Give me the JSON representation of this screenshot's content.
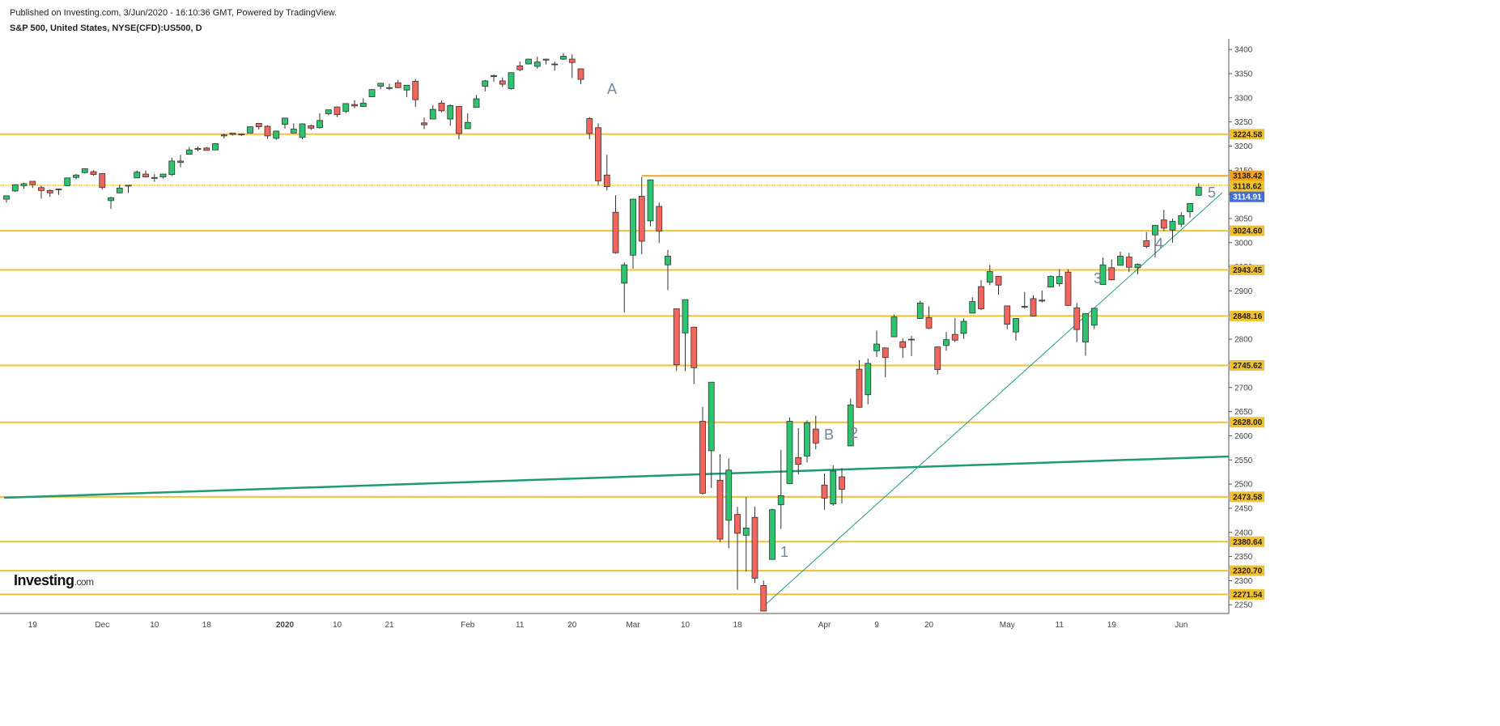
{
  "header": {
    "published": "Published on Investing.com, 3/Jun/2020 - 16:10:36 GMT, Powered by TradingView.",
    "symbol": "S&P 500, United States, NYSE(CFD):US500, D"
  },
  "logo": {
    "name": "Investing",
    "suffix": ".com"
  },
  "chart_data": {
    "type": "candlestick",
    "up_color": "#2cc46f",
    "down_color": "#f2655c",
    "categories": [
      null,
      null,
      null,
      "19",
      null,
      null,
      null,
      null,
      null,
      null,
      null,
      "Dec",
      null,
      null,
      null,
      null,
      null,
      "10",
      null,
      null,
      null,
      null,
      null,
      "18",
      null,
      null,
      null,
      null,
      null,
      null,
      null,
      null,
      "2020",
      null,
      null,
      null,
      null,
      null,
      "10",
      null,
      null,
      null,
      null,
      null,
      "21",
      null,
      null,
      null,
      null,
      null,
      null,
      null,
      null,
      "Feb",
      null,
      null,
      null,
      null,
      null,
      "11",
      null,
      null,
      null,
      null,
      null,
      "20",
      null,
      null,
      null,
      null,
      null,
      null,
      "Mar",
      null,
      null,
      null,
      null,
      null,
      "10",
      null,
      null,
      null,
      null,
      null,
      "18",
      null,
      null,
      null,
      null,
      null,
      null,
      null,
      null,
      null,
      "Apr",
      null,
      null,
      null,
      null,
      null,
      "9",
      null,
      null,
      null,
      null,
      null,
      "20",
      null,
      null,
      null,
      null,
      null,
      null,
      null,
      null,
      "May",
      null,
      null,
      null,
      null,
      null,
      "11",
      null,
      null,
      null,
      null,
      null,
      "19",
      null,
      null,
      null,
      null,
      null,
      null,
      null,
      "Jun",
      null,
      null
    ],
    "open": [
      3090,
      3107,
      3118,
      3127,
      3114,
      3108,
      3111,
      3118,
      3135,
      3145,
      3147,
      3143,
      3087,
      3103,
      3119,
      3134,
      3142,
      3135,
      3136,
      3141,
      3166,
      3183,
      3195,
      3196,
      3192,
      3223,
      3227,
      3225,
      3227,
      3247,
      3241,
      3216,
      3245,
      3227,
      3218,
      3242,
      3238,
      3267,
      3281,
      3272,
      3286,
      3282,
      3302,
      3324,
      3321,
      3331,
      3316,
      3334,
      3248,
      3256,
      3289,
      3256,
      3282,
      3236,
      3280,
      3324,
      3344,
      3335,
      3319,
      3366,
      3370,
      3365,
      3378,
      3370,
      3380,
      3380,
      3360,
      3257,
      3238,
      3140,
      3063,
      2916,
      2974,
      3096,
      3045,
      3075,
      2954,
      2863,
      2813,
      2825,
      2630,
      2569,
      2508,
      2425,
      2437,
      2394,
      2431,
      2290,
      2344,
      2457,
      2501,
      2555,
      2558,
      2614,
      2498,
      2459,
      2515,
      2579,
      2738,
      2685,
      2776,
      2782,
      2805,
      2795,
      2799,
      2843,
      2845,
      2784,
      2787,
      2810,
      2812,
      2854,
      2909,
      2918,
      2930,
      2869,
      2815,
      2868,
      2884,
      2879,
      2908,
      2915,
      2939,
      2865,
      2794,
      2829,
      2913,
      2948,
      2953,
      2970,
      2948,
      3004,
      3016,
      3047,
      3026,
      3038,
      3064,
      3098
    ],
    "high": [
      3098,
      3121,
      3124,
      3127,
      3118,
      3110,
      3112,
      3134,
      3142,
      3154,
      3150,
      3144,
      3095,
      3120,
      3119,
      3150,
      3149,
      3142,
      3143,
      3176,
      3182,
      3198,
      3199,
      3198,
      3206,
      3226,
      3227,
      3226,
      3240,
      3248,
      3243,
      3232,
      3258,
      3247,
      3247,
      3245,
      3268,
      3275,
      3282,
      3288,
      3295,
      3299,
      3317,
      3330,
      3329,
      3337,
      3326,
      3339,
      3259,
      3285,
      3294,
      3286,
      3282,
      3268,
      3306,
      3337,
      3348,
      3342,
      3352,
      3375,
      3381,
      3385,
      3381,
      3375,
      3393,
      3390,
      3360,
      3260,
      3247,
      3182,
      3098,
      2959,
      3091,
      3136,
      3130,
      3083,
      2985,
      2863,
      2882,
      2825,
      2660,
      2711,
      2562,
      2553,
      2453,
      2473,
      2453,
      2300,
      2449,
      2571,
      2638,
      2616,
      2632,
      2642,
      2522,
      2539,
      2533,
      2677,
      2757,
      2760,
      2818,
      2782,
      2851,
      2802,
      2807,
      2880,
      2868,
      2785,
      2815,
      2844,
      2843,
      2887,
      2922,
      2954,
      2931,
      2869,
      2844,
      2898,
      2891,
      2901,
      2932,
      2945,
      2945,
      2875,
      2853,
      2865,
      2969,
      2965,
      2981,
      2979,
      2957,
      3022,
      3036,
      3068,
      3050,
      3063,
      3082,
      3123
    ],
    "low": [
      3083,
      3105,
      3112,
      3113,
      3091,
      3095,
      3099,
      3117,
      3131,
      3143,
      3139,
      3110,
      3070,
      3102,
      3103,
      3134,
      3135,
      3126,
      3133,
      3138,
      3156,
      3183,
      3189,
      3191,
      3192,
      3216,
      3222,
      3221,
      3227,
      3234,
      3215,
      3213,
      3236,
      3227,
      3214,
      3233,
      3236,
      3264,
      3260,
      3268,
      3278,
      3281,
      3302,
      3318,
      3316,
      3320,
      3302,
      3281,
      3235,
      3256,
      3270,
      3242,
      3214,
      3236,
      3280,
      3313,
      3333,
      3322,
      3317,
      3355,
      3369,
      3360,
      3369,
      3356,
      3378,
      3341,
      3328,
      3214,
      3118,
      3108,
      2977,
      2855,
      2946,
      2976,
      3034,
      2999,
      2902,
      2734,
      2734,
      2707,
      2478,
      2492,
      2380,
      2367,
      2281,
      2319,
      2295,
      2237,
      2344,
      2407,
      2500,
      2520,
      2545,
      2572,
      2447,
      2455,
      2460,
      2579,
      2658,
      2665,
      2763,
      2721,
      2805,
      2761,
      2765,
      2842,
      2821,
      2727,
      2776,
      2794,
      2801,
      2854,
      2860,
      2912,
      2892,
      2821,
      2797,
      2863,
      2847,
      2876,
      2908,
      2909,
      2869,
      2794,
      2766,
      2821,
      2913,
      2922,
      2953,
      2939,
      2934,
      2988,
      2969,
      3024,
      3000,
      3032,
      3052,
      3097
    ],
    "close": [
      3097,
      3120,
      3122,
      3120,
      3108,
      3103,
      3110,
      3134,
      3140,
      3153,
      3141,
      3114,
      3093,
      3113,
      3117,
      3146,
      3136,
      3133,
      3142,
      3169,
      3169,
      3192,
      3193,
      3191,
      3205,
      3221,
      3224,
      3223,
      3240,
      3240,
      3221,
      3231,
      3258,
      3235,
      3246,
      3237,
      3253,
      3275,
      3265,
      3288,
      3283,
      3289,
      3317,
      3330,
      3321,
      3321,
      3326,
      3296,
      3244,
      3276,
      3273,
      3284,
      3226,
      3249,
      3298,
      3335,
      3346,
      3328,
      3352,
      3358,
      3380,
      3374,
      3380,
      3370,
      3386,
      3373,
      3338,
      3226,
      3128,
      3116,
      2979,
      2954,
      3090,
      3003,
      3130,
      3024,
      2972,
      2747,
      2882,
      2741,
      2481,
      2711,
      2386,
      2529,
      2398,
      2409,
      2305,
      2237,
      2447,
      2476,
      2630,
      2541,
      2627,
      2585,
      2471,
      2527,
      2489,
      2664,
      2659,
      2750,
      2790,
      2762,
      2846,
      2783,
      2800,
      2875,
      2823,
      2737,
      2799,
      2798,
      2837,
      2878,
      2863,
      2940,
      2912,
      2831,
      2843,
      2868,
      2848,
      2881,
      2930,
      2930,
      2870,
      2820,
      2853,
      2864,
      2954,
      2923,
      2972,
      2949,
      2955,
      2992,
      3036,
      3030,
      3044,
      3056,
      3081,
      3115
    ],
    "ylim": [
      2237,
      3422
    ],
    "yticks": [
      2250,
      2300,
      2350,
      2400,
      2450,
      2500,
      2550,
      2600,
      2650,
      2700,
      2750,
      2800,
      2850,
      2900,
      2950,
      3000,
      3050,
      3100,
      3150,
      3200,
      3250,
      3300,
      3350,
      3400
    ],
    "levels": [
      {
        "value": 3224.58,
        "color": "#f2c12e"
      },
      {
        "value": 3138.42,
        "color": "#f7a21b"
      },
      {
        "value": 3118.62,
        "color": "#f2c12e",
        "style": "dotted"
      },
      {
        "value": 3114.91,
        "color": "#3f6fd4",
        "style": "none"
      },
      {
        "value": 3024.6,
        "label": "3024.60",
        "color": "#f2c12e"
      },
      {
        "value": 2943.45,
        "color": "#f2c12e"
      },
      {
        "value": 2848.16,
        "color": "#f2c12e"
      },
      {
        "value": 2745.62,
        "color": "#f2c12e"
      },
      {
        "value": 2628,
        "label": "2628.00",
        "color": "#f2c12e"
      },
      {
        "value": 2473.58,
        "color": "#f2c12e"
      },
      {
        "value": 2380.64,
        "color": "#f2c12e"
      },
      {
        "value": 2320.7,
        "label": "2320.70",
        "color": "#f2c12e"
      },
      {
        "value": 2271.54,
        "color": "#f2c12e"
      }
    ],
    "annotations": [
      "A",
      "B",
      "1",
      "2",
      "3",
      "4",
      "5"
    ]
  }
}
